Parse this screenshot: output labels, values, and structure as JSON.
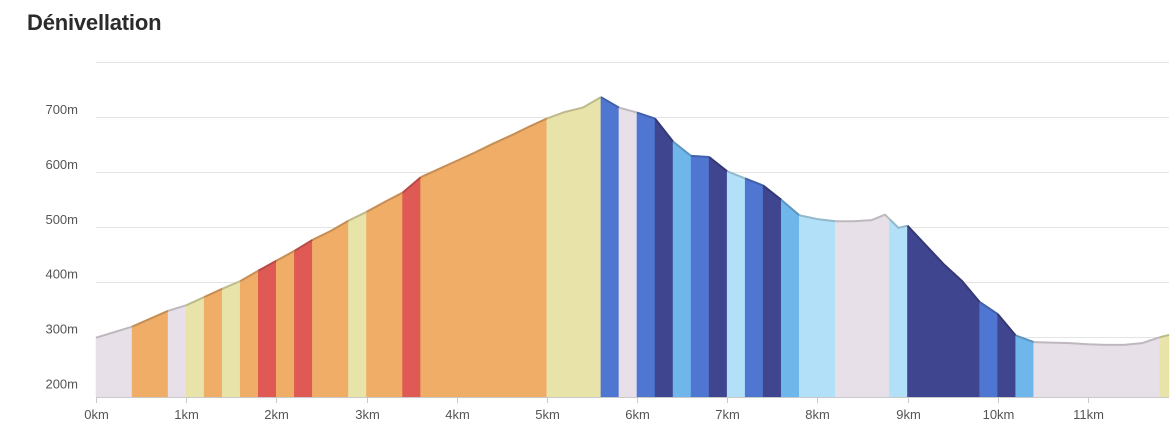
{
  "header": {
    "title": "Dénivellation"
  },
  "chart_data": {
    "type": "area",
    "title": "Dénivellation",
    "xlabel": "",
    "ylabel": "",
    "x_unit": "km",
    "y_unit": "m",
    "xlim": [
      0,
      11.9
    ],
    "ylim": [
      190,
      800
    ],
    "x_ticks": [
      "0km",
      "1km",
      "2km",
      "3km",
      "4km",
      "5km",
      "6km",
      "7km",
      "8km",
      "9km",
      "10km",
      "11km"
    ],
    "y_ticks": [
      "200m",
      "300m",
      "400m",
      "500m",
      "600m",
      "700m"
    ],
    "grid": true,
    "legend": "none",
    "profile": [
      [
        0,
        298
      ],
      [
        0.4,
        318
      ],
      [
        0.8,
        347
      ],
      [
        1.0,
        357
      ],
      [
        1.2,
        372
      ],
      [
        1.4,
        387
      ],
      [
        1.6,
        401
      ],
      [
        1.8,
        420
      ],
      [
        2.0,
        438
      ],
      [
        2.2,
        456
      ],
      [
        2.4,
        476
      ],
      [
        2.6,
        492
      ],
      [
        2.8,
        511
      ],
      [
        3.0,
        527
      ],
      [
        3.2,
        545
      ],
      [
        3.4,
        562
      ],
      [
        3.6,
        590
      ],
      [
        3.8,
        605
      ],
      [
        4.0,
        620
      ],
      [
        4.2,
        635
      ],
      [
        4.4,
        651
      ],
      [
        4.6,
        666
      ],
      [
        4.8,
        682
      ],
      [
        5.0,
        697
      ],
      [
        5.2,
        709
      ],
      [
        5.4,
        717
      ],
      [
        5.6,
        736
      ],
      [
        5.8,
        717
      ],
      [
        6.0,
        708
      ],
      [
        6.2,
        697
      ],
      [
        6.4,
        655
      ],
      [
        6.6,
        629
      ],
      [
        6.8,
        627
      ],
      [
        7.0,
        601
      ],
      [
        7.2,
        588
      ],
      [
        7.4,
        575
      ],
      [
        7.6,
        549
      ],
      [
        7.8,
        521
      ],
      [
        8.0,
        514
      ],
      [
        8.2,
        510
      ],
      [
        8.4,
        510
      ],
      [
        8.6,
        512
      ],
      [
        8.75,
        522
      ],
      [
        8.9,
        498
      ],
      [
        9.0,
        502
      ],
      [
        9.2,
        467
      ],
      [
        9.4,
        432
      ],
      [
        9.6,
        402
      ],
      [
        9.8,
        363
      ],
      [
        10.0,
        341
      ],
      [
        10.2,
        302
      ],
      [
        10.4,
        290
      ],
      [
        10.6,
        289
      ],
      [
        10.8,
        288
      ],
      [
        11.0,
        286
      ],
      [
        11.2,
        285
      ],
      [
        11.4,
        285
      ],
      [
        11.6,
        288
      ],
      [
        11.8,
        299
      ],
      [
        11.9,
        303
      ]
    ],
    "segments": [
      {
        "from": 0,
        "to": 0.4,
        "color": "#e8e0e8"
      },
      {
        "from": 0.4,
        "to": 0.8,
        "color": "#f0ad67"
      },
      {
        "from": 0.8,
        "to": 1.0,
        "color": "#e8e0e8"
      },
      {
        "from": 1.0,
        "to": 1.2,
        "color": "#e8e3a9"
      },
      {
        "from": 1.2,
        "to": 1.4,
        "color": "#f0ad67"
      },
      {
        "from": 1.4,
        "to": 1.6,
        "color": "#e8e3a9"
      },
      {
        "from": 1.6,
        "to": 1.8,
        "color": "#f0ad67"
      },
      {
        "from": 1.8,
        "to": 2.0,
        "color": "#e05a55"
      },
      {
        "from": 2.0,
        "to": 2.2,
        "color": "#f0ad67"
      },
      {
        "from": 2.2,
        "to": 2.4,
        "color": "#e05a55"
      },
      {
        "from": 2.4,
        "to": 2.8,
        "color": "#f0ad67"
      },
      {
        "from": 2.8,
        "to": 3.0,
        "color": "#e8e3a9"
      },
      {
        "from": 3.0,
        "to": 3.4,
        "color": "#f0ad67"
      },
      {
        "from": 3.4,
        "to": 3.6,
        "color": "#e05a55"
      },
      {
        "from": 3.6,
        "to": 5.0,
        "color": "#f0ad67"
      },
      {
        "from": 5.0,
        "to": 5.6,
        "color": "#e8e3a9"
      },
      {
        "from": 5.6,
        "to": 5.8,
        "color": "#4f76d1"
      },
      {
        "from": 5.8,
        "to": 6.0,
        "color": "#e8e0e8"
      },
      {
        "from": 6.0,
        "to": 6.2,
        "color": "#4f76d1"
      },
      {
        "from": 6.2,
        "to": 6.4,
        "color": "#3f458f"
      },
      {
        "from": 6.4,
        "to": 6.6,
        "color": "#6fb6ea"
      },
      {
        "from": 6.6,
        "to": 6.8,
        "color": "#4f76d1"
      },
      {
        "from": 6.8,
        "to": 7.0,
        "color": "#3f458f"
      },
      {
        "from": 7.0,
        "to": 7.2,
        "color": "#b2e0f8"
      },
      {
        "from": 7.2,
        "to": 7.4,
        "color": "#4f76d1"
      },
      {
        "from": 7.4,
        "to": 7.6,
        "color": "#3f458f"
      },
      {
        "from": 7.6,
        "to": 7.8,
        "color": "#6fb6ea"
      },
      {
        "from": 7.8,
        "to": 8.2,
        "color": "#b2e0f8"
      },
      {
        "from": 8.2,
        "to": 8.8,
        "color": "#e8e0e8"
      },
      {
        "from": 8.8,
        "to": 9.0,
        "color": "#b2e0f8"
      },
      {
        "from": 9.0,
        "to": 9.8,
        "color": "#3f458f"
      },
      {
        "from": 9.8,
        "to": 10.0,
        "color": "#4f76d1"
      },
      {
        "from": 10.0,
        "to": 10.2,
        "color": "#3f458f"
      },
      {
        "from": 10.2,
        "to": 10.4,
        "color": "#6fb6ea"
      },
      {
        "from": 10.4,
        "to": 11.8,
        "color": "#e8e0e8"
      },
      {
        "from": 11.8,
        "to": 11.9,
        "color": "#e8e3a9"
      }
    ]
  }
}
